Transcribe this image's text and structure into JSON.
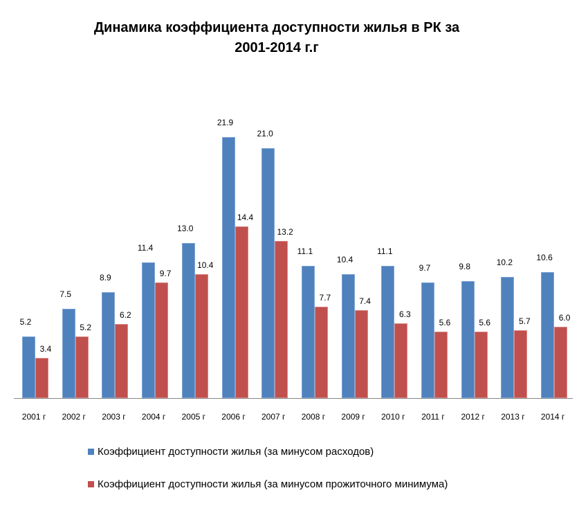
{
  "chart_data": {
    "type": "bar",
    "title": "Динамика коэффициента доступности жилья в РК за 2001-2014 г.г",
    "title_lines": [
      "Динамика коэффициента доступности жилья в РК за",
      "2001-2014 г.г"
    ],
    "xlabel": "",
    "ylabel": "",
    "ylim": [
      0,
      27.6
    ],
    "grid": false,
    "legend_position": "bottom",
    "categories": [
      "2001 г",
      "2002 г",
      "2003 г",
      "2004 г",
      "2005 г",
      "2006 г",
      "2007 г",
      "2008 г",
      "2009 г",
      "2010 г",
      "2011 г",
      "2012 г",
      "2013 г",
      "2014 г"
    ],
    "series": [
      {
        "name": "Коэффициент доступности жилья (за минусом расходов)",
        "color": "#4f81bd",
        "values": [
          5.2,
          7.5,
          8.9,
          11.4,
          13.0,
          21.9,
          21.0,
          11.1,
          10.4,
          11.1,
          9.7,
          9.8,
          10.2,
          10.6
        ],
        "labels": [
          "5.2",
          "7.5",
          "8.9",
          "11.4",
          "13.0",
          "21.9",
          "21.0",
          "11.1",
          "10.4",
          "11.1",
          "9.7",
          "9.8",
          "10.2",
          "10.6"
        ]
      },
      {
        "name": "Коэффициент доступности жилья (за минусом прожиточного минимума)",
        "color": "#c0504d",
        "values": [
          3.4,
          5.2,
          6.2,
          9.7,
          10.4,
          14.4,
          13.2,
          7.7,
          7.4,
          6.3,
          5.6,
          5.6,
          5.7,
          6.0
        ],
        "labels": [
          "3.4",
          "5.2",
          "6.2",
          "9.7",
          "10.4",
          "14.4",
          "13.2",
          "7.7",
          "7.4",
          "6.3",
          "5.6",
          "5.6",
          "5.7",
          "6.0"
        ]
      }
    ]
  }
}
